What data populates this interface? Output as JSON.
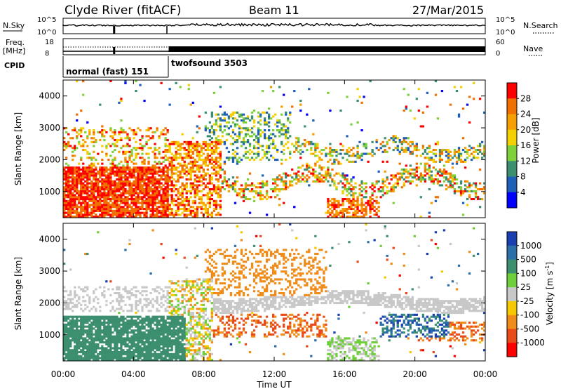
{
  "header": {
    "title": "Clyde River (fitACF)",
    "beam": "Beam 11",
    "date": "27/Mar/2015"
  },
  "summary": {
    "nsky_label": "N.Sky",
    "nsearch_label": "N.Search",
    "freq_label_line1": "Freq.",
    "freq_label_line2": "[MHz]",
    "nave_label": "Nave",
    "cpid_label": "CPID",
    "noise_ticks_left": [
      "10^5",
      "10^0"
    ],
    "noise_ticks_right": [
      "10^5",
      "10^0"
    ],
    "freq_ticks": [
      "18",
      "8"
    ],
    "nave_ticks": [
      "60",
      "0"
    ],
    "cpid_segments": [
      {
        "label": "normal (fast) 151",
        "start_hour": 0,
        "end_hour": 6
      },
      {
        "label": "twofsound 3503",
        "start_hour": 6,
        "end_hour": 24
      }
    ]
  },
  "chart_data": [
    {
      "type": "heatmap",
      "panel": "power",
      "ylabel": "Slant Range [km]",
      "y_ticks": [
        "1000",
        "2000",
        "3000",
        "4000"
      ],
      "ylim": [
        180,
        4500
      ],
      "colorbar_label": "Power [dB]",
      "colorbar_ticks": [
        "4",
        "8",
        "12",
        "16",
        "20",
        "24",
        "28"
      ],
      "colors": [
        "#0000ff",
        "#1e5fb8",
        "#3c8f6e",
        "#7fd13b",
        "#f5d000",
        "#f5a000",
        "#f07000",
        "#ff0000"
      ]
    },
    {
      "type": "heatmap",
      "panel": "velocity",
      "ylabel": "Slant Range [km]",
      "y_ticks": [
        "1000",
        "2000",
        "3000",
        "4000"
      ],
      "ylim": [
        180,
        4500
      ],
      "xlabel": "Time UT",
      "x_ticks": [
        "00:00",
        "04:00",
        "08:00",
        "12:00",
        "16:00",
        "20:00",
        "00:00"
      ],
      "colorbar_label": "Velocity [m s^-1]",
      "colorbar_ticks": [
        "1000",
        "500",
        "100",
        "25",
        "-25",
        "-100",
        "-500",
        "-1000"
      ],
      "colors": [
        "#1a3fb0",
        "#2b6fa8",
        "#3c8f6e",
        "#6fcf3a",
        "#c8c8c8",
        "#f5c800",
        "#f08c1a",
        "#e84a1a",
        "#ff0000"
      ],
      "ground_scatter_color": "#c8c8c8"
    }
  ]
}
